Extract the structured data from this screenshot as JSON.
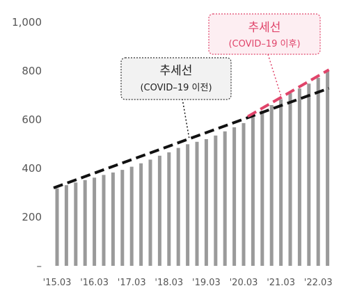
{
  "chart_data": {
    "type": "bar",
    "y_ticks": [
      "–",
      "200",
      "400",
      "600",
      "800",
      "1,000"
    ],
    "y_tick_values": [
      0,
      200,
      400,
      600,
      800,
      1000
    ],
    "ylim": [
      0,
      1000
    ],
    "x_ticks": [
      "'15.03",
      "'16.03",
      "'17.03",
      "'18.03",
      "'19.03",
      "'20.03",
      "'21.03",
      "'22.03"
    ],
    "x_tick_positions": [
      0,
      4,
      8,
      12,
      16,
      20,
      24,
      28
    ],
    "values": [
      318,
      331,
      342,
      352,
      362,
      373,
      383,
      394,
      407,
      421,
      436,
      452,
      466,
      484,
      499,
      509,
      520,
      535,
      552,
      569,
      586,
      611,
      637,
      660,
      684,
      709,
      728,
      748,
      772,
      801
    ],
    "trend_lines": [
      {
        "name": "추세선 (COVID–19 이전)",
        "start_value": 320,
        "end_value": 729,
        "start_index": 0,
        "end_index": 29
      },
      {
        "name": "추세선 (COVID–19 이후)",
        "start_value": 613,
        "end_value": 805,
        "start_index": 20,
        "end_index": 29
      }
    ],
    "annotations": [
      {
        "title": "추세선",
        "subtitle": "(COVID–19 이전)"
      },
      {
        "title": "추세선",
        "subtitle": "(COVID–19 이후)"
      }
    ],
    "colors": {
      "bar": "#9a9a9a",
      "pre_trend": "#111111",
      "post_trend": "#e0446a",
      "post_box_bg": "#fdeef2",
      "pre_box_bg": "#f2f2f2"
    }
  }
}
